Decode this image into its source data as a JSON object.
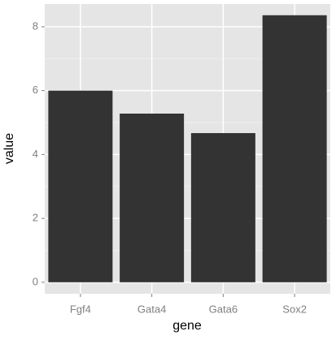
{
  "chart_data": {
    "type": "bar",
    "x_label": "gene",
    "y_label": "value",
    "categories": [
      "Fgf4",
      "Gata4",
      "Gata6",
      "Sox2"
    ],
    "values": [
      6.0,
      5.28,
      4.67,
      8.36
    ],
    "color": "#333333",
    "ylim": [
      -0.36,
      8.71
    ],
    "yticks": [
      0,
      2,
      4,
      6,
      8
    ],
    "grid": true,
    "minor_grid": true
  }
}
